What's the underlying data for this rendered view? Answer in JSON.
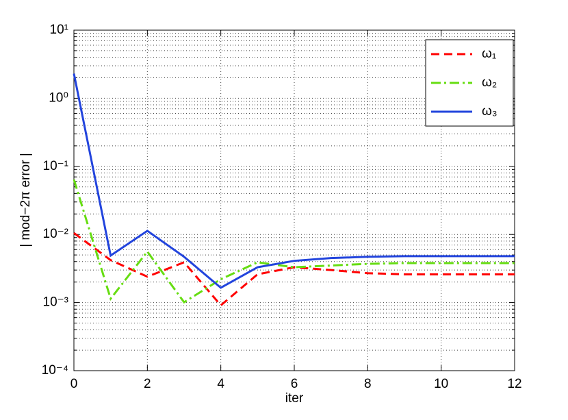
{
  "chart_data": {
    "type": "line",
    "xlabel": "iter",
    "ylabel": "| mod−2π error |",
    "x": [
      0,
      1,
      2,
      3,
      4,
      5,
      6,
      7,
      8,
      9,
      10,
      11,
      12
    ],
    "series": [
      {
        "name": "ω₁",
        "color": "#ff0000",
        "style": "dashed",
        "values": [
          0.0105,
          0.0042,
          0.0024,
          0.0039,
          0.00091,
          0.0026,
          0.0033,
          0.003,
          0.0027,
          0.0026,
          0.0026,
          0.0026,
          0.0026
        ]
      },
      {
        "name": "ω₂",
        "color": "#66dd11",
        "style": "dashdot",
        "values": [
          0.064,
          0.00114,
          0.0056,
          0.00101,
          0.0022,
          0.0039,
          0.0033,
          0.0035,
          0.0037,
          0.0038,
          0.0038,
          0.0038,
          0.0038
        ]
      },
      {
        "name": "ω₃",
        "color": "#2244dd",
        "style": "solid",
        "values": [
          2.3,
          0.0049,
          0.0113,
          0.0047,
          0.00165,
          0.0033,
          0.0041,
          0.0045,
          0.0047,
          0.0048,
          0.0048,
          0.0048,
          0.0048
        ]
      }
    ],
    "xlim": [
      0,
      12
    ],
    "xticks": [
      0,
      2,
      4,
      6,
      8,
      10,
      12
    ],
    "ylim": [
      0.0001,
      10
    ],
    "ylog": true,
    "yticks": [
      {
        "value": 0.0001,
        "label": "10⁻⁴"
      },
      {
        "value": 0.001,
        "label": "10⁻³"
      },
      {
        "value": 0.01,
        "label": "10⁻²"
      },
      {
        "value": 0.1,
        "label": "10⁻¹"
      },
      {
        "value": 1,
        "label": "10⁰"
      },
      {
        "value": 10,
        "label": "10¹"
      }
    ],
    "grid": true,
    "minor_grid": true,
    "legend": "upper right"
  }
}
